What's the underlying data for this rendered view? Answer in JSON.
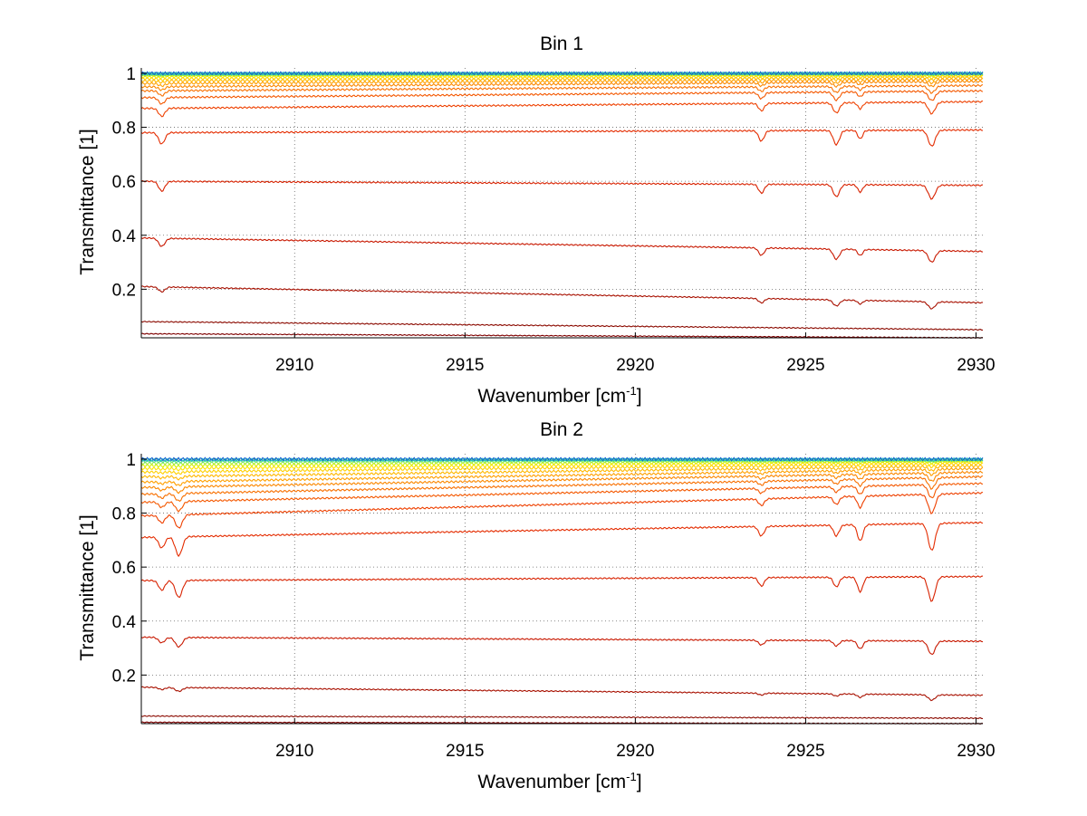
{
  "chart_data": [
    {
      "type": "line",
      "title": "Bin 1",
      "xlabel": "Wavenumber [cm",
      "xlabel_sup": "-1",
      "xlabel_end": "]",
      "ylabel": "Transmittance [1]",
      "xlim": [
        2905.5,
        2930.2
      ],
      "ylim": [
        0.02,
        1.02
      ],
      "xticks": [
        2910,
        2915,
        2920,
        2925,
        2930
      ],
      "yticks": [
        0.2,
        0.4,
        0.6,
        0.8,
        1
      ],
      "xtick_labels": [
        "2910",
        "2915",
        "2920",
        "2925",
        "2930"
      ],
      "ytick_labels": [
        "0.2",
        "0.4",
        "0.6",
        "0.8",
        "1"
      ],
      "grid": true,
      "absorption_lines": [
        {
          "x": 2906.1,
          "width": 0.09,
          "relative_depth": 0.6
        },
        {
          "x": 2923.7,
          "width": 0.08,
          "relative_depth": 0.55
        },
        {
          "x": 2925.9,
          "width": 0.09,
          "relative_depth": 0.75
        },
        {
          "x": 2926.6,
          "width": 0.07,
          "relative_depth": 0.45
        },
        {
          "x": 2928.7,
          "width": 0.1,
          "relative_depth": 0.85
        }
      ],
      "series": [
        {
          "baseline_start": 0.035,
          "baseline_end": 0.02,
          "depth": 0.0,
          "color": "#7f0000"
        },
        {
          "baseline_start": 0.08,
          "baseline_end": 0.05,
          "depth": 0.0,
          "color": "#8b0a00"
        },
        {
          "baseline_start": 0.21,
          "baseline_end": 0.15,
          "depth": 0.03,
          "color": "#a81000"
        },
        {
          "baseline_start": 0.39,
          "baseline_end": 0.34,
          "depth": 0.05,
          "color": "#c81800"
        },
        {
          "baseline_start": 0.6,
          "baseline_end": 0.585,
          "depth": 0.06,
          "color": "#d82200"
        },
        {
          "baseline_start": 0.78,
          "baseline_end": 0.79,
          "depth": 0.07,
          "color": "#e42c00"
        },
        {
          "baseline_start": 0.87,
          "baseline_end": 0.895,
          "depth": 0.05,
          "color": "#ee4000"
        },
        {
          "baseline_start": 0.91,
          "baseline_end": 0.935,
          "depth": 0.04,
          "color": "#f45800"
        },
        {
          "baseline_start": 0.935,
          "baseline_end": 0.955,
          "depth": 0.03,
          "color": "#f87000"
        },
        {
          "baseline_start": 0.95,
          "baseline_end": 0.97,
          "depth": 0.02,
          "color": "#fb8800"
        },
        {
          "baseline_start": 0.962,
          "baseline_end": 0.978,
          "depth": 0.015,
          "color": "#ffa000"
        },
        {
          "baseline_start": 0.972,
          "baseline_end": 0.985,
          "depth": 0.01,
          "color": "#ffb800"
        },
        {
          "baseline_start": 0.98,
          "baseline_end": 0.99,
          "depth": 0.008,
          "color": "#ffd000"
        },
        {
          "baseline_start": 0.987,
          "baseline_end": 0.994,
          "depth": 0.006,
          "color": "#ffe400"
        },
        {
          "baseline_start": 0.992,
          "baseline_end": 0.997,
          "depth": 0.004,
          "color": "#d8f000"
        },
        {
          "baseline_start": 0.995,
          "baseline_end": 0.998,
          "depth": 0.003,
          "color": "#a0f040"
        },
        {
          "baseline_start": 0.997,
          "baseline_end": 0.999,
          "depth": 0.002,
          "color": "#60e080"
        },
        {
          "baseline_start": 0.999,
          "baseline_end": 1.0,
          "depth": 0.001,
          "color": "#20c0c0"
        },
        {
          "baseline_start": 1.0,
          "baseline_end": 1.0,
          "depth": 0.0,
          "color": "#1060d0"
        }
      ]
    },
    {
      "type": "line",
      "title": "Bin 2",
      "xlabel": "Wavenumber [cm",
      "xlabel_sup": "-1",
      "xlabel_end": "]",
      "ylabel": "Transmittance [1]",
      "xlim": [
        2905.5,
        2930.2
      ],
      "ylim": [
        0.02,
        1.02
      ],
      "xticks": [
        2910,
        2915,
        2920,
        2925,
        2930
      ],
      "yticks": [
        0.2,
        0.4,
        0.6,
        0.8,
        1
      ],
      "xtick_labels": [
        "2910",
        "2915",
        "2920",
        "2925",
        "2930"
      ],
      "ytick_labels": [
        "0.2",
        "0.4",
        "0.6",
        "0.8",
        "1"
      ],
      "grid": true,
      "absorption_lines": [
        {
          "x": 2906.1,
          "width": 0.09,
          "relative_depth": 0.4
        },
        {
          "x": 2906.6,
          "width": 0.1,
          "relative_depth": 0.7
        },
        {
          "x": 2923.7,
          "width": 0.08,
          "relative_depth": 0.35
        },
        {
          "x": 2925.9,
          "width": 0.08,
          "relative_depth": 0.4
        },
        {
          "x": 2926.6,
          "width": 0.08,
          "relative_depth": 0.6
        },
        {
          "x": 2928.7,
          "width": 0.1,
          "relative_depth": 1.0
        }
      ],
      "series": [
        {
          "baseline_start": 0.025,
          "baseline_end": 0.02,
          "depth": 0.0,
          "color": "#7f0000"
        },
        {
          "baseline_start": 0.048,
          "baseline_end": 0.04,
          "depth": 0.0,
          "color": "#8b0a00"
        },
        {
          "baseline_start": 0.155,
          "baseline_end": 0.125,
          "depth": 0.02,
          "color": "#a81000"
        },
        {
          "baseline_start": 0.34,
          "baseline_end": 0.325,
          "depth": 0.05,
          "color": "#c81800"
        },
        {
          "baseline_start": 0.55,
          "baseline_end": 0.565,
          "depth": 0.09,
          "color": "#d82200"
        },
        {
          "baseline_start": 0.71,
          "baseline_end": 0.765,
          "depth": 0.1,
          "color": "#e42c00"
        },
        {
          "baseline_start": 0.79,
          "baseline_end": 0.875,
          "depth": 0.07,
          "color": "#ee4000"
        },
        {
          "baseline_start": 0.84,
          "baseline_end": 0.91,
          "depth": 0.05,
          "color": "#f45800"
        },
        {
          "baseline_start": 0.87,
          "baseline_end": 0.935,
          "depth": 0.04,
          "color": "#f87000"
        },
        {
          "baseline_start": 0.895,
          "baseline_end": 0.952,
          "depth": 0.03,
          "color": "#fb8800"
        },
        {
          "baseline_start": 0.915,
          "baseline_end": 0.965,
          "depth": 0.02,
          "color": "#ffa000"
        },
        {
          "baseline_start": 0.935,
          "baseline_end": 0.975,
          "depth": 0.015,
          "color": "#ffb800"
        },
        {
          "baseline_start": 0.952,
          "baseline_end": 0.983,
          "depth": 0.01,
          "color": "#ffd000"
        },
        {
          "baseline_start": 0.965,
          "baseline_end": 0.989,
          "depth": 0.008,
          "color": "#ffe400"
        },
        {
          "baseline_start": 0.976,
          "baseline_end": 0.993,
          "depth": 0.006,
          "color": "#d8f000"
        },
        {
          "baseline_start": 0.985,
          "baseline_end": 0.996,
          "depth": 0.004,
          "color": "#a0f040"
        },
        {
          "baseline_start": 0.992,
          "baseline_end": 0.998,
          "depth": 0.003,
          "color": "#60e080"
        },
        {
          "baseline_start": 0.997,
          "baseline_end": 0.999,
          "depth": 0.002,
          "color": "#20c0c0"
        },
        {
          "baseline_start": 1.0,
          "baseline_end": 1.0,
          "depth": 0.0,
          "color": "#1060d0"
        }
      ]
    }
  ]
}
